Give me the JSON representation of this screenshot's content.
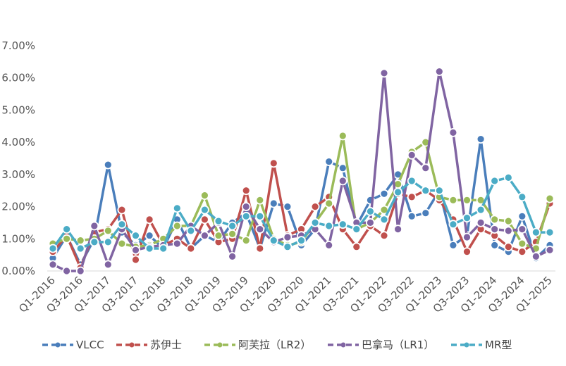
{
  "chart_data": {
    "type": "line",
    "x": [
      "Q1-2016",
      "Q2-2016",
      "Q3-2016",
      "Q4-2016",
      "Q1-2017",
      "Q2-2017",
      "Q3-2017",
      "Q4-2017",
      "Q1-2018",
      "Q2-2018",
      "Q3-2018",
      "Q4-2018",
      "Q1-2019",
      "Q2-2019",
      "Q3-2019",
      "Q4-2019",
      "Q1-2020",
      "Q2-2020",
      "Q3-2020",
      "Q4-2020",
      "Q1-2021",
      "Q2-2021",
      "Q3-2021",
      "Q4-2021",
      "Q1-2022",
      "Q2-2022",
      "Q3-2022",
      "Q4-2022",
      "Q1-2023",
      "Q2-2023",
      "Q3-2023",
      "Q4-2023",
      "Q1-2024",
      "Q2-2024",
      "Q3-2024",
      "Q4-2024",
      "Q1-2025"
    ],
    "x_tick_labels": [
      "Q1-2016",
      "Q3-2016",
      "Q1-2017",
      "Q3-2017",
      "Q1-2018",
      "Q3-2018",
      "Q1-2019",
      "Q3-2019",
      "Q1-2020",
      "Q3-2020",
      "Q1-2021",
      "Q3-2021",
      "Q1-2022",
      "Q3-2022",
      "Q1-2023",
      "Q3-2023",
      "Q1-2024",
      "Q3-2024",
      "Q1-2025"
    ],
    "y_tick_labels": [
      "0.00%",
      "1.00%",
      "2.00%",
      "3.00%",
      "4.00%",
      "5.00%",
      "6.00%",
      "7.00%"
    ],
    "ylim": [
      0,
      7
    ],
    "y_unit": "%",
    "grid": false,
    "legend_position": "bottom",
    "series": [
      {
        "name": "VLCC",
        "color": "#4a7ebb",
        "values": [
          0.4,
          1.1,
          0.2,
          1.0,
          3.3,
          1.2,
          0.8,
          1.1,
          0.7,
          1.6,
          0.7,
          1.1,
          0.9,
          1.5,
          1.8,
          0.7,
          2.1,
          2.0,
          0.8,
          1.3,
          3.4,
          3.2,
          1.4,
          2.2,
          2.4,
          3.0,
          1.7,
          1.8,
          2.5,
          0.8,
          1.1,
          4.1,
          0.8,
          0.6,
          1.7,
          0.4,
          0.8
        ]
      },
      {
        "name": "苏伊士",
        "color": "#c0504d",
        "values": [
          0.6,
          1.1,
          0.1,
          1.2,
          1.3,
          1.9,
          0.35,
          1.6,
          0.8,
          1.0,
          0.7,
          1.6,
          0.9,
          1.0,
          2.5,
          0.7,
          3.35,
          1.1,
          1.3,
          2.0,
          2.3,
          1.3,
          0.75,
          1.4,
          1.1,
          2.4,
          2.3,
          2.5,
          2.2,
          1.6,
          0.6,
          1.3,
          1.1,
          0.75,
          0.6,
          0.9,
          2.1
        ]
      },
      {
        "name": "阿芙拉（LR2）",
        "color": "#9bbb59",
        "values": [
          0.85,
          1.0,
          0.95,
          1.0,
          1.25,
          0.85,
          0.75,
          0.8,
          1.0,
          1.4,
          1.4,
          2.35,
          1.1,
          1.15,
          0.95,
          2.2,
          1.0,
          0.8,
          0.9,
          1.5,
          2.1,
          4.2,
          1.3,
          1.5,
          1.9,
          2.7,
          3.7,
          4.0,
          2.3,
          2.2,
          2.2,
          2.2,
          1.6,
          1.55,
          0.85,
          0.7,
          2.25
        ]
      },
      {
        "name": "巴拿马（LR1）",
        "color": "#8064a2",
        "values": [
          0.2,
          0.0,
          0.0,
          1.4,
          0.2,
          1.3,
          0.65,
          0.75,
          0.8,
          0.85,
          1.4,
          1.1,
          1.5,
          0.45,
          2.0,
          1.3,
          0.9,
          1.05,
          1.1,
          1.3,
          0.8,
          2.8,
          1.5,
          1.5,
          6.15,
          1.3,
          3.6,
          3.2,
          6.2,
          4.3,
          1.05,
          1.5,
          1.3,
          1.25,
          1.3,
          0.45,
          0.65
        ]
      },
      {
        "name": "MR型",
        "color": "#4bacc6",
        "values": [
          0.7,
          1.3,
          0.7,
          0.9,
          0.9,
          1.45,
          1.1,
          0.7,
          0.7,
          1.95,
          1.25,
          1.9,
          1.55,
          1.4,
          1.7,
          1.7,
          0.95,
          0.75,
          0.95,
          1.5,
          1.4,
          1.45,
          1.3,
          1.85,
          1.6,
          2.45,
          2.8,
          2.5,
          2.5,
          1.45,
          1.65,
          1.9,
          2.8,
          2.9,
          2.3,
          1.2,
          1.2
        ]
      }
    ]
  }
}
